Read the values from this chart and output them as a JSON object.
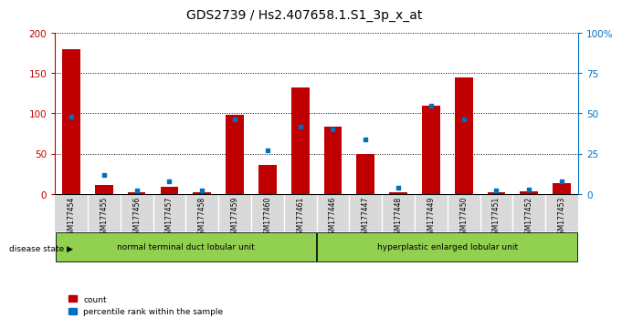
{
  "title": "GDS2739 / Hs2.407658.1.S1_3p_x_at",
  "categories": [
    "GSM177454",
    "GSM177455",
    "GSM177456",
    "GSM177457",
    "GSM177458",
    "GSM177459",
    "GSM177460",
    "GSM177461",
    "GSM177446",
    "GSM177447",
    "GSM177448",
    "GSM177449",
    "GSM177450",
    "GSM177451",
    "GSM177452",
    "GSM177453"
  ],
  "count_values": [
    180,
    11,
    2,
    9,
    2,
    98,
    36,
    132,
    84,
    50,
    2,
    110,
    145,
    2,
    3,
    13
  ],
  "percentile_values": [
    48,
    12,
    2,
    8,
    2,
    46,
    27,
    42,
    40,
    34,
    4,
    55,
    46,
    2,
    3,
    8
  ],
  "group1_label": "normal terminal duct lobular unit",
  "group1_count": 8,
  "group2_label": "hyperplastic enlarged lobular unit",
  "group2_count": 8,
  "disease_state_label": "disease state",
  "legend_count": "count",
  "legend_pct": "percentile rank within the sample",
  "ylim_left": [
    0,
    200
  ],
  "ylim_right": [
    0,
    100
  ],
  "yticks_left": [
    0,
    50,
    100,
    150,
    200
  ],
  "yticks_right": [
    0,
    25,
    50,
    75,
    100
  ],
  "ytick_labels_right": [
    "0",
    "25",
    "50",
    "75",
    "100%"
  ],
  "bar_color_count": "#c00000",
  "bar_color_pct": "#0070c0",
  "bg_color_fig": "#ffffff",
  "group_color": "#92d050",
  "xticklabel_bg": "#d9d9d9",
  "title_fontsize": 10
}
